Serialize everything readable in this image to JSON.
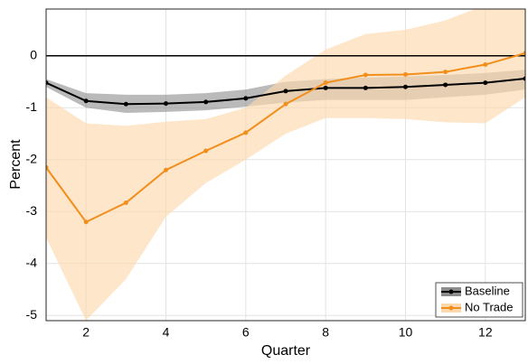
{
  "chart_data": {
    "type": "line",
    "x_label": "Quarter",
    "y_label": "Percent",
    "x": [
      1,
      2,
      3,
      4,
      5,
      6,
      7,
      8,
      9,
      10,
      11,
      12,
      13
    ],
    "series": [
      {
        "name": "Baseline",
        "color": "#000000",
        "band_color": "#8c8c8c",
        "values": [
          -0.52,
          -0.87,
          -0.93,
          -0.92,
          -0.89,
          -0.82,
          -0.68,
          -0.62,
          -0.62,
          -0.6,
          -0.56,
          -0.52,
          -0.44
        ],
        "upper": [
          -0.45,
          -0.72,
          -0.75,
          -0.75,
          -0.72,
          -0.65,
          -0.5,
          -0.45,
          -0.42,
          -0.4,
          -0.37,
          -0.33,
          -0.27
        ],
        "lower": [
          -0.6,
          -1.0,
          -1.1,
          -1.08,
          -1.05,
          -0.98,
          -0.9,
          -0.85,
          -0.85,
          -0.85,
          -0.8,
          -0.75,
          -0.65
        ]
      },
      {
        "name": "No Trade",
        "color": "#f28e1c",
        "band_color": "#fdd9ae",
        "values": [
          -2.15,
          -3.2,
          -2.83,
          -2.2,
          -1.83,
          -1.48,
          -0.93,
          -0.52,
          -0.37,
          -0.36,
          -0.31,
          -0.17,
          0.05
        ],
        "upper": [
          -0.8,
          -1.3,
          -1.35,
          -1.27,
          -1.22,
          -1.0,
          -0.38,
          0.12,
          0.42,
          0.5,
          0.68,
          0.98,
          1.0
        ],
        "lower": [
          -3.5,
          -5.1,
          -4.3,
          -3.1,
          -2.45,
          -2.0,
          -1.5,
          -1.2,
          -1.2,
          -1.22,
          -1.28,
          -1.3,
          -0.8
        ]
      }
    ],
    "xlim": [
      1,
      13
    ],
    "xticks": [
      2,
      4,
      6,
      8,
      10,
      12
    ],
    "ylim": [
      -5.1,
      0.9
    ],
    "yticks": [
      0,
      -1,
      -2,
      -3,
      -4,
      -5
    ],
    "grid": true,
    "legend": "lower right"
  }
}
